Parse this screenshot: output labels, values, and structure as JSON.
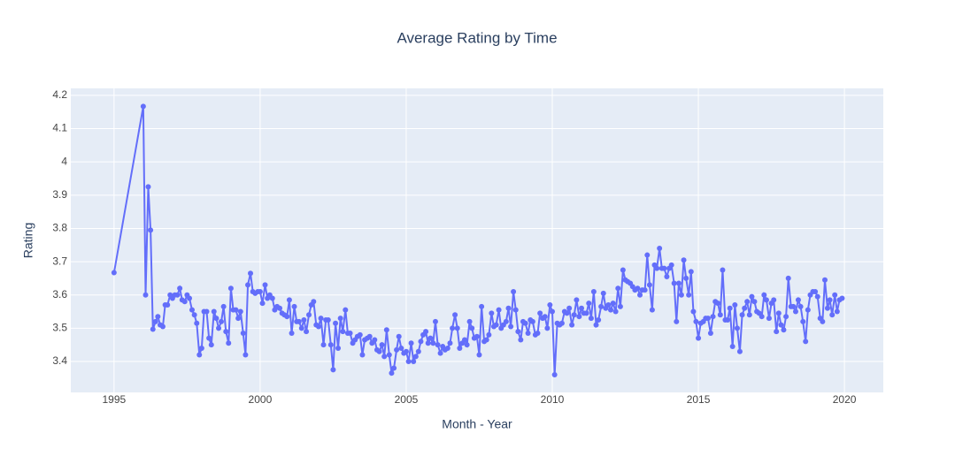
{
  "chart_data": {
    "type": "line",
    "title": "Average Rating by Time",
    "x_label": "Month - Year",
    "y_label": "Rating",
    "color": "#636efa",
    "grid": true,
    "xlim": [
      1993.52,
      2021.33
    ],
    "xticks": [
      1995,
      2000,
      2005,
      2010,
      2015,
      2020
    ],
    "ylim": [
      3.307,
      4.221
    ],
    "yticks": [
      3.4,
      3.5,
      3.6,
      3.7,
      3.8,
      3.9,
      4,
      4.1,
      4.2
    ],
    "x": [
      1995.0,
      1996.0,
      1996.08,
      1996.17,
      1996.25,
      1996.33,
      1996.42,
      1996.5,
      1996.58,
      1996.67,
      1996.75,
      1996.83,
      1996.92,
      1997.0,
      1997.08,
      1997.17,
      1997.25,
      1997.33,
      1997.42,
      1997.5,
      1997.58,
      1997.67,
      1997.75,
      1997.83,
      1997.92,
      1998.0,
      1998.08,
      1998.17,
      1998.25,
      1998.33,
      1998.42,
      1998.5,
      1998.58,
      1998.67,
      1998.75,
      1998.83,
      1998.92,
      1999.0,
      1999.08,
      1999.17,
      1999.25,
      1999.33,
      1999.42,
      1999.5,
      1999.58,
      1999.67,
      1999.75,
      1999.83,
      1999.92,
      2000.0,
      2000.08,
      2000.17,
      2000.25,
      2000.33,
      2000.42,
      2000.5,
      2000.58,
      2000.67,
      2000.75,
      2000.83,
      2000.92,
      2001.0,
      2001.08,
      2001.17,
      2001.25,
      2001.33,
      2001.42,
      2001.5,
      2001.58,
      2001.67,
      2001.75,
      2001.83,
      2001.92,
      2002.0,
      2002.08,
      2002.17,
      2002.25,
      2002.33,
      2002.42,
      2002.5,
      2002.58,
      2002.67,
      2002.75,
      2002.83,
      2002.92,
      2003.0,
      2003.08,
      2003.17,
      2003.25,
      2003.33,
      2003.42,
      2003.5,
      2003.58,
      2003.67,
      2003.75,
      2003.83,
      2003.92,
      2004.0,
      2004.08,
      2004.17,
      2004.25,
      2004.33,
      2004.42,
      2004.5,
      2004.58,
      2004.67,
      2004.75,
      2004.83,
      2004.92,
      2005.0,
      2005.08,
      2005.17,
      2005.25,
      2005.33,
      2005.42,
      2005.5,
      2005.58,
      2005.67,
      2005.75,
      2005.83,
      2005.92,
      2006.0,
      2006.08,
      2006.17,
      2006.25,
      2006.33,
      2006.42,
      2006.5,
      2006.58,
      2006.67,
      2006.75,
      2006.83,
      2006.92,
      2007.0,
      2007.08,
      2007.17,
      2007.25,
      2007.33,
      2007.42,
      2007.5,
      2007.58,
      2007.67,
      2007.75,
      2007.83,
      2007.92,
      2008.0,
      2008.08,
      2008.17,
      2008.25,
      2008.33,
      2008.42,
      2008.5,
      2008.58,
      2008.67,
      2008.75,
      2008.83,
      2008.92,
      2009.0,
      2009.08,
      2009.17,
      2009.25,
      2009.33,
      2009.42,
      2009.5,
      2009.58,
      2009.67,
      2009.75,
      2009.83,
      2009.92,
      2010.0,
      2010.08,
      2010.17,
      2010.25,
      2010.33,
      2010.42,
      2010.5,
      2010.58,
      2010.67,
      2010.75,
      2010.83,
      2010.92,
      2011.0,
      2011.08,
      2011.17,
      2011.25,
      2011.33,
      2011.42,
      2011.5,
      2011.58,
      2011.67,
      2011.75,
      2011.83,
      2011.92,
      2012.0,
      2012.08,
      2012.17,
      2012.25,
      2012.33,
      2012.42,
      2012.5,
      2012.58,
      2012.67,
      2012.75,
      2012.83,
      2012.92,
      2013.0,
      2013.08,
      2013.17,
      2013.25,
      2013.33,
      2013.42,
      2013.5,
      2013.58,
      2013.67,
      2013.75,
      2013.83,
      2013.92,
      2014.0,
      2014.08,
      2014.17,
      2014.25,
      2014.33,
      2014.42,
      2014.5,
      2014.58,
      2014.67,
      2014.75,
      2014.83,
      2014.92,
      2015.0,
      2015.08,
      2015.17,
      2015.25,
      2015.33,
      2015.42,
      2015.5,
      2015.58,
      2015.67,
      2015.75,
      2015.83,
      2015.92,
      2016.0,
      2016.08,
      2016.17,
      2016.25,
      2016.33,
      2016.42,
      2016.5,
      2016.58,
      2016.67,
      2016.75,
      2016.83,
      2016.92,
      2017.0,
      2017.08,
      2017.17,
      2017.25,
      2017.33,
      2017.42,
      2017.5,
      2017.58,
      2017.67,
      2017.75,
      2017.83,
      2017.92,
      2018.0,
      2018.08,
      2018.17,
      2018.25,
      2018.33,
      2018.42,
      2018.5,
      2018.58,
      2018.67,
      2018.75,
      2018.83,
      2018.92,
      2019.0,
      2019.08,
      2019.17,
      2019.25,
      2019.33,
      2019.42,
      2019.5,
      2019.58,
      2019.67,
      2019.75,
      2019.83,
      2019.92
    ],
    "values": [
      3.667,
      4.167,
      3.6,
      3.925,
      3.795,
      3.497,
      3.52,
      3.535,
      3.51,
      3.505,
      3.57,
      3.57,
      3.6,
      3.59,
      3.6,
      3.6,
      3.62,
      3.585,
      3.58,
      3.6,
      3.59,
      3.555,
      3.54,
      3.515,
      3.42,
      3.44,
      3.55,
      3.55,
      3.47,
      3.45,
      3.55,
      3.53,
      3.5,
      3.52,
      3.565,
      3.49,
      3.455,
      3.62,
      3.555,
      3.555,
      3.53,
      3.55,
      3.485,
      3.42,
      3.63,
      3.665,
      3.61,
      3.605,
      3.61,
      3.61,
      3.575,
      3.63,
      3.59,
      3.6,
      3.59,
      3.555,
      3.565,
      3.56,
      3.545,
      3.54,
      3.535,
      3.585,
      3.485,
      3.565,
      3.52,
      3.52,
      3.5,
      3.525,
      3.49,
      3.54,
      3.57,
      3.58,
      3.51,
      3.505,
      3.53,
      3.45,
      3.525,
      3.525,
      3.45,
      3.375,
      3.515,
      3.44,
      3.53,
      3.49,
      3.555,
      3.485,
      3.485,
      3.455,
      3.465,
      3.475,
      3.48,
      3.42,
      3.465,
      3.47,
      3.475,
      3.455,
      3.465,
      3.435,
      3.43,
      3.45,
      3.415,
      3.495,
      3.42,
      3.365,
      3.38,
      3.435,
      3.475,
      3.44,
      3.425,
      3.43,
      3.4,
      3.455,
      3.4,
      3.415,
      3.43,
      3.46,
      3.48,
      3.49,
      3.455,
      3.47,
      3.455,
      3.52,
      3.45,
      3.425,
      3.445,
      3.435,
      3.44,
      3.455,
      3.5,
      3.54,
      3.5,
      3.44,
      3.455,
      3.465,
      3.45,
      3.52,
      3.5,
      3.47,
      3.475,
      3.42,
      3.565,
      3.46,
      3.465,
      3.48,
      3.545,
      3.505,
      3.51,
      3.555,
      3.5,
      3.51,
      3.52,
      3.56,
      3.505,
      3.61,
      3.555,
      3.49,
      3.465,
      3.52,
      3.515,
      3.485,
      3.525,
      3.52,
      3.48,
      3.485,
      3.545,
      3.53,
      3.535,
      3.5,
      3.57,
      3.55,
      3.36,
      3.515,
      3.51,
      3.515,
      3.55,
      3.545,
      3.56,
      3.51,
      3.54,
      3.585,
      3.535,
      3.56,
      3.545,
      3.545,
      3.575,
      3.53,
      3.61,
      3.51,
      3.525,
      3.565,
      3.605,
      3.56,
      3.57,
      3.555,
      3.575,
      3.55,
      3.62,
      3.565,
      3.675,
      3.645,
      3.64,
      3.635,
      3.625,
      3.615,
      3.62,
      3.6,
      3.615,
      3.615,
      3.72,
      3.63,
      3.555,
      3.69,
      3.68,
      3.74,
      3.68,
      3.68,
      3.655,
      3.68,
      3.69,
      3.635,
      3.52,
      3.635,
      3.6,
      3.705,
      3.65,
      3.6,
      3.67,
      3.55,
      3.52,
      3.47,
      3.515,
      3.52,
      3.53,
      3.53,
      3.485,
      3.535,
      3.58,
      3.575,
      3.54,
      3.675,
      3.525,
      3.525,
      3.56,
      3.445,
      3.57,
      3.5,
      3.43,
      3.54,
      3.56,
      3.58,
      3.54,
      3.595,
      3.58,
      3.55,
      3.545,
      3.535,
      3.6,
      3.585,
      3.53,
      3.575,
      3.585,
      3.49,
      3.545,
      3.51,
      3.495,
      3.535,
      3.65,
      3.565,
      3.565,
      3.55,
      3.585,
      3.565,
      3.52,
      3.46,
      3.555,
      3.6,
      3.61,
      3.61,
      3.595,
      3.53,
      3.52,
      3.645,
      3.56,
      3.585,
      3.54,
      3.6,
      3.55,
      3.585,
      3.59
    ]
  }
}
